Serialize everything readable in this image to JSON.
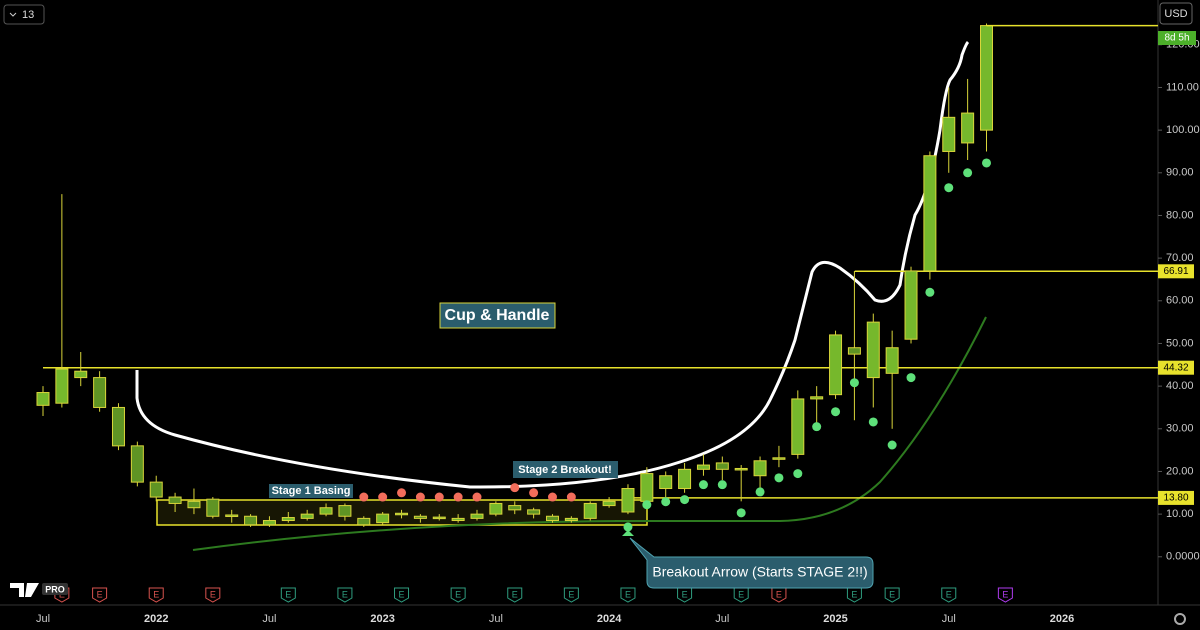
{
  "chart_data": {
    "type": "candlestick",
    "interval": "13",
    "currency": "USD",
    "countdown": "8d 5h",
    "logo": "PRO",
    "annotations": [
      "Cup & Handle",
      "Stage 1 Basing",
      "Stage 2 Breakout!",
      "Breakout Arrow (Starts STAGE 2!!)"
    ],
    "categories": [
      null,
      null,
      "Jul",
      null,
      null,
      null,
      null,
      null,
      "2022",
      null,
      null,
      null,
      null,
      null,
      "Jul",
      null,
      null,
      null,
      null,
      null,
      "2023",
      null,
      null,
      null,
      null,
      null,
      "Jul",
      null,
      null,
      null,
      null,
      null,
      "2024",
      null,
      null,
      null,
      null,
      null,
      "Jul",
      null,
      null,
      null,
      null,
      null,
      "2025",
      null,
      null,
      null,
      null,
      null,
      "Jul",
      null,
      null,
      null,
      null,
      null,
      "2026",
      null,
      null,
      null,
      null
    ],
    "open": [
      null,
      null,
      35.5,
      36,
      42,
      42,
      35,
      26,
      17.5,
      14,
      13,
      13.5,
      9.5,
      9.5,
      7.5,
      8.5,
      9,
      10,
      12,
      9,
      8,
      10,
      9.5,
      9,
      8.5,
      9,
      10,
      12,
      11,
      9.5,
      8.5,
      9,
      12,
      10.5,
      13,
      16,
      16,
      20.5,
      22,
      20.5,
      19,
      23,
      24,
      37,
      38,
      49,
      42,
      43,
      51,
      67,
      95,
      97,
      100,
      null,
      null,
      null,
      null,
      null,
      null,
      null,
      null
    ],
    "high": [
      null,
      null,
      40,
      85,
      48,
      43.5,
      36,
      27,
      19,
      15,
      16,
      14,
      11,
      10,
      9.5,
      10.5,
      11,
      12.5,
      12.5,
      9.5,
      10.5,
      11,
      10,
      10,
      10,
      11,
      13,
      13,
      11.5,
      10,
      9.5,
      13,
      14,
      17,
      21,
      20,
      22,
      24,
      23.5,
      21.5,
      23.5,
      26,
      39,
      40,
      53,
      67,
      57,
      53,
      68,
      95,
      110,
      112,
      125,
      null,
      null,
      null,
      null,
      null,
      null,
      null,
      null
    ],
    "low": [
      null,
      null,
      33,
      35,
      40,
      34,
      25,
      16.5,
      13,
      10.5,
      10,
      9,
      8,
      7,
      7,
      8,
      8.5,
      9.5,
      8.5,
      7,
      7.5,
      9,
      8,
      8.5,
      8,
      8.5,
      9.5,
      10,
      9,
      8,
      8,
      8.5,
      11.5,
      10,
      12.5,
      14,
      15,
      19,
      18,
      13,
      16,
      21,
      23,
      30,
      37,
      32,
      35,
      30,
      50,
      65,
      90,
      93,
      95,
      null,
      null,
      null,
      null,
      null,
      null,
      null,
      null
    ],
    "close": [
      null,
      null,
      38.5,
      44,
      43.5,
      35,
      26,
      17.5,
      14,
      12.5,
      11.5,
      9.5,
      9.8,
      7.5,
      8.5,
      9.2,
      10,
      11.5,
      9.5,
      7.5,
      10,
      10.2,
      9,
      9.3,
      9,
      10,
      12.5,
      11,
      10,
      8.5,
      9,
      12.5,
      13,
      16,
      19.5,
      19,
      20.5,
      21.5,
      20.5,
      20.7,
      22.5,
      23.2,
      37,
      37.5,
      52,
      47.5,
      55,
      49,
      67,
      94,
      103,
      104,
      124.5,
      null,
      null,
      null,
      null,
      null,
      null,
      null,
      null
    ],
    "up_color": "#76b82c",
    "down_color": "#5f9424",
    "border_color": "#d9d53a",
    "dots": [
      {
        "color": "#f26d5b",
        "values": [
          null,
          null,
          null,
          null,
          null,
          null,
          null,
          null,
          null,
          null,
          null,
          null,
          null,
          null,
          null,
          null,
          null,
          null,
          null,
          14,
          14,
          15,
          14,
          14,
          14,
          14,
          null,
          16.2,
          15,
          14,
          14,
          null,
          null,
          null,
          null,
          null,
          null,
          null,
          null,
          null,
          null,
          null,
          null,
          null,
          null,
          null,
          null,
          null,
          null,
          null,
          null,
          null,
          null,
          null,
          null,
          null,
          null,
          null,
          null,
          null,
          null
        ]
      },
      {
        "color": "#5ee07a",
        "values": [
          null,
          null,
          null,
          null,
          null,
          null,
          null,
          null,
          null,
          null,
          null,
          null,
          null,
          null,
          null,
          null,
          null,
          null,
          null,
          null,
          null,
          null,
          null,
          null,
          null,
          null,
          null,
          null,
          null,
          null,
          null,
          null,
          null,
          7,
          12.2,
          12.9,
          13.4,
          16.9,
          16.9,
          10.3,
          15.2,
          18.5,
          19.5,
          30.5,
          34,
          40.8,
          31.6,
          26.2,
          42,
          62,
          86.5,
          90,
          92.3,
          null,
          null,
          null,
          null,
          null,
          null,
          null,
          null
        ]
      }
    ],
    "levels": [
      {
        "value": 66.91,
        "label": "66.91"
      },
      {
        "value": 44.32,
        "label": "44.32"
      },
      {
        "value": 13.8,
        "label": "13.80"
      }
    ],
    "level_color": "#e8e22c",
    "earnings": {
      "label": "E",
      "index": [
        3,
        5,
        8,
        11,
        15,
        18,
        21,
        24,
        27,
        30,
        33,
        36,
        39,
        41,
        45,
        47,
        50,
        53
      ],
      "colors": [
        "#d9534f",
        "#d9534f",
        "#d9534f",
        "#d9534f",
        "#2f9e80",
        "#2f9e80",
        "#2f9e80",
        "#2f9e80",
        "#2f9e80",
        "#2f9e80",
        "#2f9e80",
        "#2f9e80",
        "#2f9e80",
        "#d9534f",
        "#2f9e80",
        "#2f9e80",
        "#2f9e80",
        "#b03cf0"
      ]
    },
    "ylim": [
      -11.3,
      130.5
    ],
    "yticks": [
      {
        "value": 0,
        "label": "0.0000"
      },
      {
        "value": 10,
        "label": "10.00"
      },
      {
        "value": 20,
        "label": "20.00"
      },
      {
        "value": 30,
        "label": "30.00"
      },
      {
        "value": 40,
        "label": "40.00"
      },
      {
        "value": 50,
        "label": "50.00"
      },
      {
        "value": 60,
        "label": "60.00"
      },
      {
        "value": 70,
        "label": "70.00"
      },
      {
        "value": 80,
        "label": "80.00"
      },
      {
        "value": 90,
        "label": "90.00"
      },
      {
        "value": 100,
        "label": "100.00"
      },
      {
        "value": 110,
        "label": "110.00"
      },
      {
        "value": 120,
        "label": "120.00"
      }
    ]
  }
}
